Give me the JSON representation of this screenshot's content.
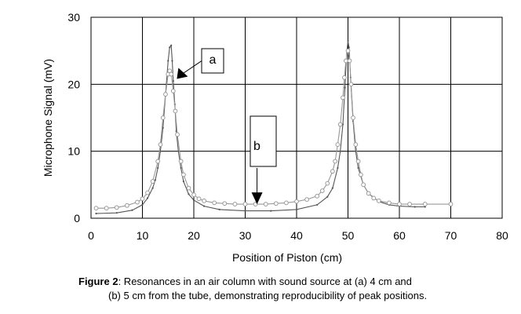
{
  "chart_data": {
    "type": "line",
    "xlabel": "Position of Piston  (cm)",
    "ylabel": "Microphone Signal (mV)",
    "xlim": [
      0,
      80
    ],
    "ylim": [
      0,
      30
    ],
    "xticks": [
      "0",
      "10",
      "20",
      "30",
      "40",
      "50",
      "60",
      "70",
      "80"
    ],
    "yticks": [
      "0",
      "10",
      "20",
      "30"
    ],
    "grid": true,
    "annotations": [
      {
        "label": "a",
        "arrow_to": [
          16.7,
          20.8
        ]
      },
      {
        "label": "b",
        "arrow_to": [
          32.3,
          2.1
        ]
      }
    ],
    "series": [
      {
        "key": "a",
        "marker": "dot",
        "color": "#555555",
        "x": [
          1,
          5,
          8,
          10,
          11,
          12,
          12.5,
          13,
          13.5,
          14,
          14.5,
          15,
          15.3,
          15.6,
          15.8,
          16,
          16.3,
          16.6,
          17,
          17.5,
          18,
          19,
          20,
          22,
          25,
          30,
          35,
          40,
          44,
          46,
          47,
          48,
          48.5,
          49,
          49.4,
          49.8,
          50,
          50.2,
          50.5,
          51,
          51.5,
          52,
          53,
          54,
          56,
          58,
          60,
          63,
          65
        ],
        "y": [
          0.7,
          0.8,
          1.2,
          2.0,
          3.0,
          4.5,
          5.7,
          7.5,
          10,
          13.5,
          18.5,
          23.5,
          25.5,
          25.8,
          23.5,
          20.5,
          17,
          13,
          10,
          7.5,
          5.5,
          3.6,
          2.7,
          1.8,
          1.3,
          1.1,
          1.1,
          1.3,
          2.0,
          3.2,
          4.5,
          7.5,
          10,
          14,
          19.5,
          25,
          26.5,
          25.5,
          21,
          14.5,
          10,
          7.5,
          5,
          3.7,
          2.5,
          2.0,
          1.8,
          1.7,
          1.7
        ]
      },
      {
        "key": "b",
        "marker": "circle",
        "color": "#999999",
        "x": [
          1,
          3,
          5,
          7,
          9,
          10,
          11,
          12,
          13,
          13.5,
          14,
          14.5,
          15,
          15.3,
          15.6,
          16,
          16.4,
          16.8,
          17.5,
          18,
          19,
          20,
          21,
          22,
          24,
          26,
          28,
          30,
          32,
          34,
          36,
          38,
          40,
          42,
          44,
          45,
          46,
          47,
          47.5,
          48,
          48.5,
          49,
          49.3,
          49.6,
          50,
          50.3,
          50.6,
          51,
          51.5,
          52,
          52.5,
          53,
          54,
          55,
          56,
          58,
          60,
          62,
          65,
          70
        ],
        "y": [
          1.5,
          1.5,
          1.6,
          1.9,
          2.4,
          2.9,
          3.8,
          5.5,
          8.5,
          11,
          15,
          18.5,
          21.5,
          22,
          21.5,
          19,
          16,
          12.5,
          8.5,
          6.5,
          4.5,
          3.5,
          2.9,
          2.6,
          2.3,
          2.2,
          2.1,
          2.1,
          2.1,
          2.1,
          2.2,
          2.3,
          2.5,
          2.8,
          3.3,
          4.1,
          5.2,
          7,
          8.5,
          11,
          14,
          18,
          21,
          23.5,
          25,
          23.5,
          20,
          15,
          11,
          8.5,
          6.5,
          5,
          3.7,
          3.0,
          2.6,
          2.3,
          2.1,
          2.1,
          2.1,
          2.1
        ]
      }
    ]
  },
  "caption": {
    "label": "Figure 2",
    "line1_rest": ": Resonances in an air column with sound source at (a) 4 cm and",
    "line2": "(b) 5 cm from the tube, demonstrating reproducibility of peak positions."
  }
}
